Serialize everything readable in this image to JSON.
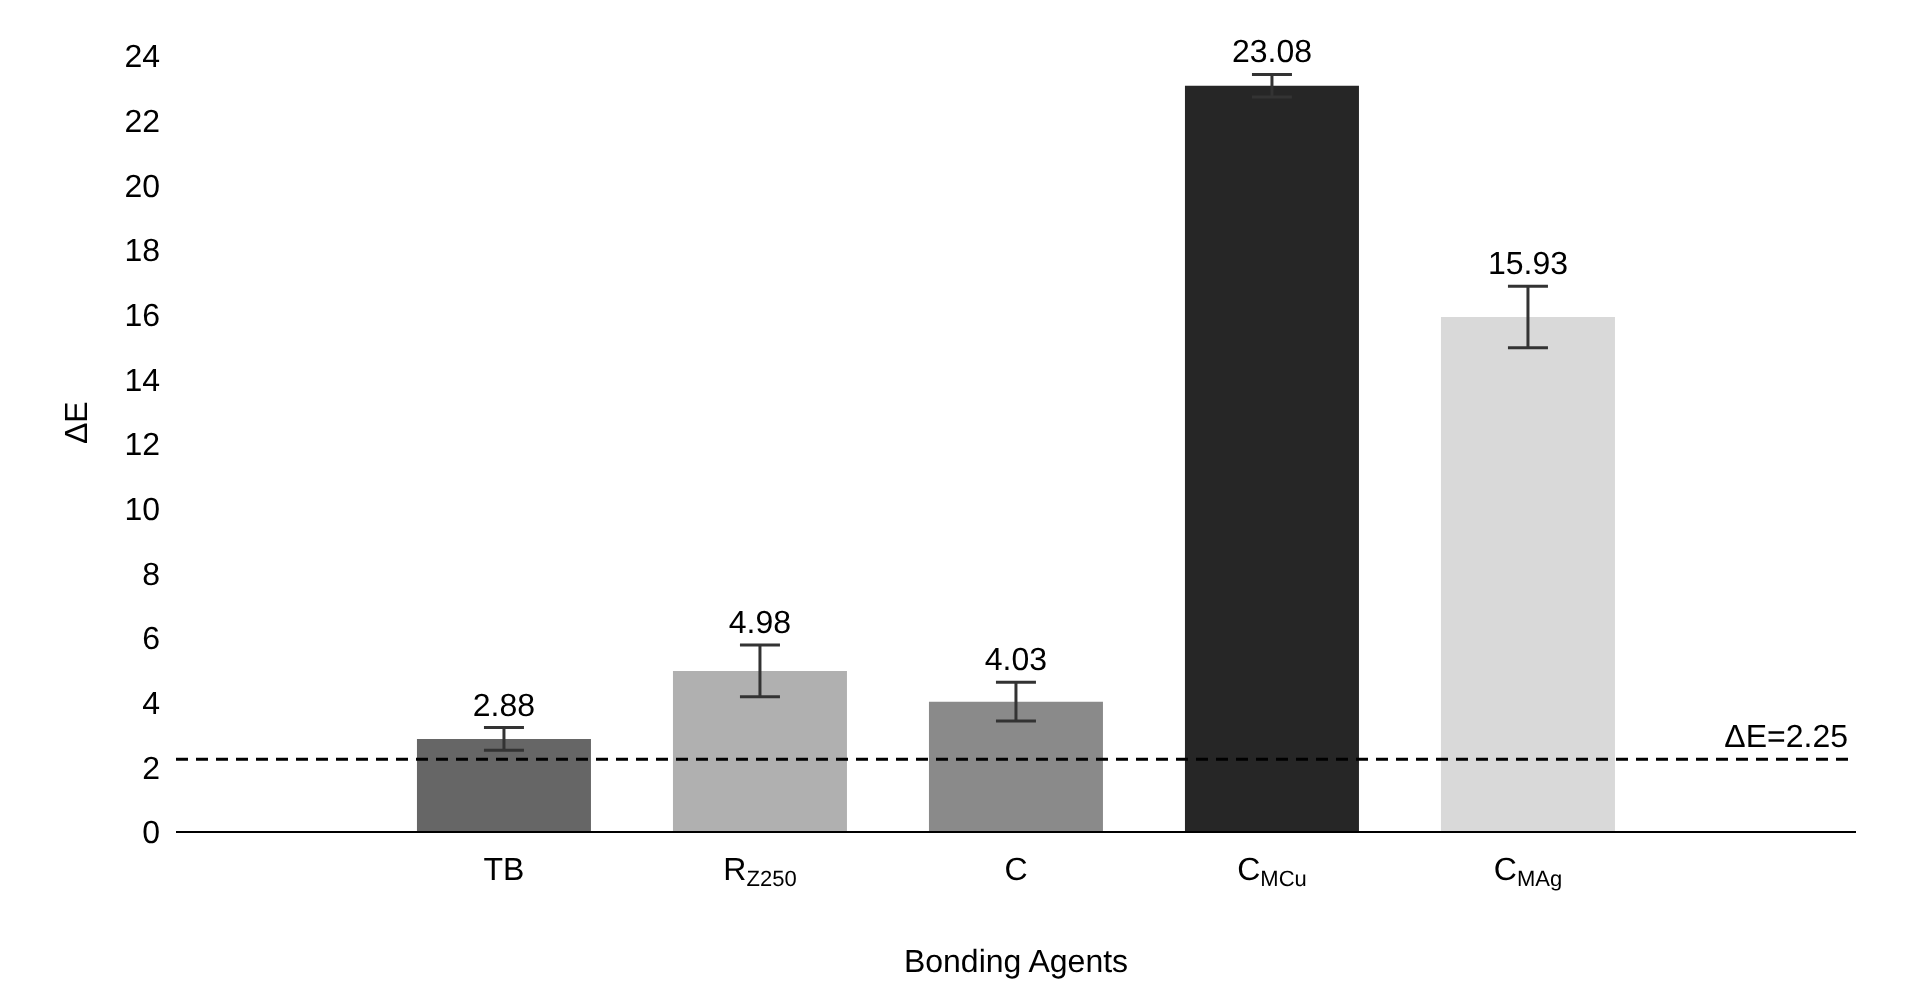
{
  "chart_data": {
    "type": "bar",
    "xlabel": "Bonding Agents",
    "ylabel": "ΔE",
    "categories": [
      "TB",
      "R$_{Z250}$",
      "C",
      "C$_{MCu}$",
      "C$_{MAg}$"
    ],
    "values": [
      2.88,
      4.98,
      4.03,
      23.08,
      15.93
    ],
    "colors": [
      "#666666",
      "#b0b0b0",
      "#8a8a8a",
      "#262626",
      "#d9d9d9"
    ],
    "errors": [
      0.35,
      0.8,
      0.6,
      0.35,
      0.95
    ],
    "data_labels": true,
    "ylim": [
      0,
      24
    ],
    "yticks": [
      0,
      2,
      4,
      6,
      8,
      10,
      12,
      14,
      16,
      18,
      20,
      22,
      24
    ],
    "ref_lines": [
      {
        "axis": "y",
        "value": 2.25,
        "label": "ΔE=2.25",
        "color": "#000000",
        "line_style": "dashed"
      }
    ],
    "grid": false,
    "legend": false
  }
}
